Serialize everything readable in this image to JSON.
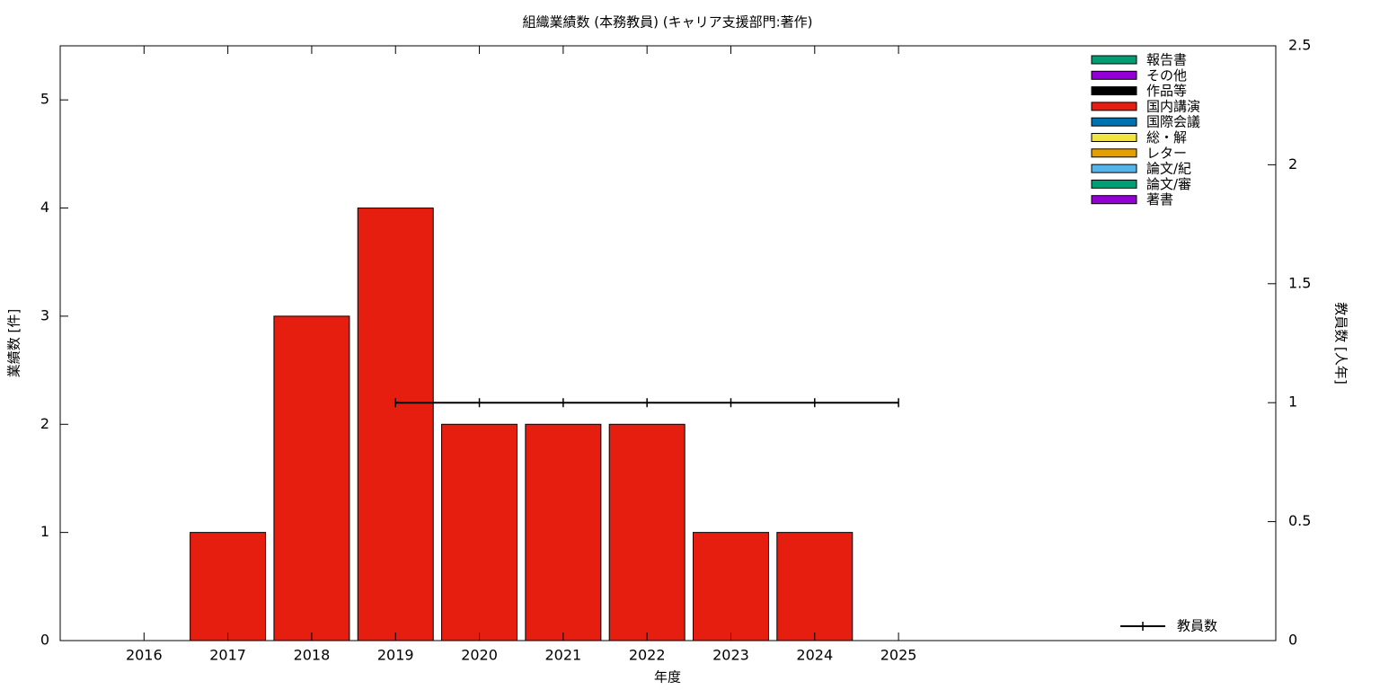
{
  "chart_data": {
    "type": "bar",
    "stacked": true,
    "title": "組織業績数 (本務教員) (キャリア支援部門:著作)",
    "xlabel": "年度",
    "ylabel": "業績数 [件]",
    "y2label": "教員数 [人年]",
    "x": [
      2016,
      2017,
      2018,
      2019,
      2020,
      2021,
      2022,
      2023,
      2024
    ],
    "xlim": [
      2015,
      2029.5
    ],
    "xticks": [
      2016,
      2017,
      2018,
      2019,
      2020,
      2021,
      2022,
      2023,
      2024,
      2025
    ],
    "ylim": [
      0,
      5.5
    ],
    "yticks": [
      0,
      1,
      2,
      3,
      4,
      5
    ],
    "y2lim": [
      0,
      2.5
    ],
    "y2ticks": [
      0,
      0.5,
      1,
      1.5,
      2,
      2.5
    ],
    "series": [
      {
        "name": "報告書",
        "color": "#009e73",
        "values": [
          0,
          0,
          0,
          0,
          0,
          0,
          0,
          0,
          0
        ]
      },
      {
        "name": "その他",
        "color": "#9400d3",
        "values": [
          0,
          0,
          0,
          0,
          0,
          0,
          0,
          0,
          0
        ]
      },
      {
        "name": "作品等",
        "color": "#000000",
        "values": [
          0,
          0,
          0,
          0,
          0,
          0,
          0,
          0,
          0
        ]
      },
      {
        "name": "国内講演",
        "color": "#e51e10",
        "values": [
          0,
          1,
          3,
          4,
          2,
          2,
          2,
          1,
          1
        ]
      },
      {
        "name": "国際会議",
        "color": "#0072b2",
        "values": [
          0,
          0,
          0,
          0,
          0,
          0,
          0,
          0,
          0
        ]
      },
      {
        "name": "総・解",
        "color": "#f0e442",
        "values": [
          0,
          0,
          0,
          0,
          0,
          0,
          0,
          0,
          0
        ]
      },
      {
        "name": "レター",
        "color": "#e69f00",
        "values": [
          0,
          0,
          0,
          0,
          0,
          0,
          0,
          0,
          0
        ]
      },
      {
        "name": "論文/紀",
        "color": "#56b4e9",
        "values": [
          0,
          0,
          0,
          0,
          0,
          0,
          0,
          0,
          0
        ]
      },
      {
        "name": "論文/審",
        "color": "#009e73",
        "values": [
          0,
          0,
          0,
          0,
          0,
          0,
          0,
          0,
          0
        ]
      },
      {
        "name": "著書",
        "color": "#9400d3",
        "values": [
          0,
          0,
          0,
          0,
          0,
          0,
          0,
          0,
          0
        ]
      }
    ],
    "line_series": [
      {
        "name": "教員数",
        "color": "#000000",
        "axis": "y2",
        "type": "line",
        "x": [
          2019,
          2020,
          2021,
          2022,
          2023,
          2024,
          2025
        ],
        "values": [
          1,
          1,
          1,
          1,
          1,
          1,
          1
        ]
      }
    ]
  }
}
